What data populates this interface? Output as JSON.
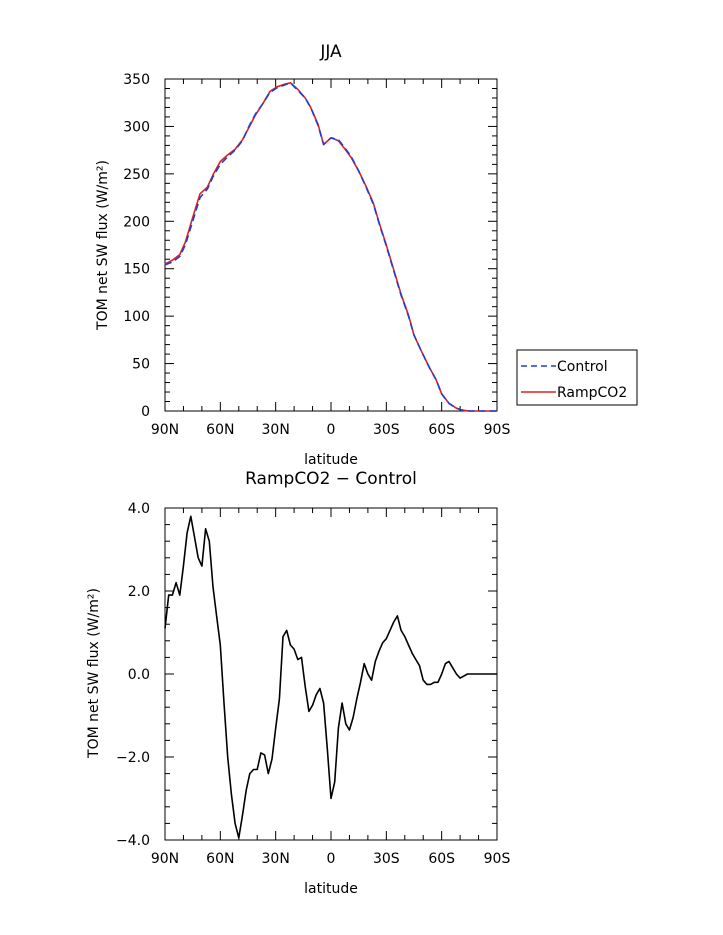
{
  "chart_data": [
    {
      "type": "line",
      "title": "JJA",
      "xlabel": "latitude",
      "ylabel": "TOM net SW flux (W/m²)",
      "xlim": [
        90,
        -90
      ],
      "ylim": [
        0,
        350
      ],
      "xticks": [
        90,
        60,
        30,
        0,
        -30,
        -60,
        -90
      ],
      "xtick_labels": [
        "90N",
        "60N",
        "30N",
        "0",
        "30S",
        "60S",
        "90S"
      ],
      "yticks": [
        0,
        50,
        100,
        150,
        200,
        250,
        300,
        350
      ],
      "ytick_labels": [
        "0",
        "50",
        "100",
        "150",
        "200",
        "250",
        "300",
        "350"
      ],
      "legend_position": "right",
      "x": [
        90,
        86,
        82,
        79,
        75,
        71,
        67,
        64,
        60,
        56,
        52,
        48,
        45,
        41,
        37,
        33,
        29,
        26,
        22,
        18,
        14,
        11,
        7,
        4,
        0,
        -4,
        -8,
        -11,
        -15,
        -19,
        -23,
        -26,
        -30,
        -34,
        -38,
        -42,
        -45,
        -49,
        -53,
        -57,
        -60,
        -64,
        -68,
        -71,
        -75,
        -79,
        -83,
        -86,
        -90
      ],
      "series": [
        {
          "name": "Control",
          "color": "#1f3fcf",
          "dash": "dashed",
          "values": [
            154,
            157,
            163,
            175,
            200,
            225,
            234,
            247,
            260,
            268,
            275,
            285,
            298,
            313,
            324,
            336,
            341,
            343,
            346,
            338,
            330,
            320,
            301,
            281,
            288,
            286,
            276,
            268,
            253,
            236,
            218,
            198,
            174,
            148,
            122,
            100,
            80,
            63,
            47,
            33,
            18,
            8,
            3,
            1,
            0,
            0,
            0,
            0,
            0
          ]
        },
        {
          "name": "RampCO2",
          "color": "#e02020",
          "dash": "solid",
          "values": [
            155,
            159,
            165,
            178,
            204,
            229,
            236,
            249,
            263,
            270,
            276,
            286,
            297,
            312,
            324,
            337,
            342,
            344,
            346,
            339,
            330,
            320,
            302,
            281,
            288,
            285,
            275,
            267,
            253,
            237,
            219,
            199,
            175,
            149,
            123,
            101,
            80,
            63,
            47,
            33,
            18,
            8,
            3,
            1,
            0,
            0,
            0,
            0,
            0
          ]
        }
      ]
    },
    {
      "type": "line",
      "title": "RampCO2 − Control",
      "xlabel": "latitude",
      "ylabel": "TOM net SW flux (W/m²)",
      "xlim": [
        90,
        -90
      ],
      "ylim": [
        -4,
        4
      ],
      "xticks": [
        90,
        60,
        30,
        0,
        -30,
        -60,
        -90
      ],
      "xtick_labels": [
        "90N",
        "60N",
        "30N",
        "0",
        "30S",
        "60S",
        "90S"
      ],
      "yticks": [
        -4,
        -2,
        0,
        2,
        4
      ],
      "ytick_labels": [
        "−4.0",
        "−2.0",
        "0.0",
        "2.0",
        "4.0"
      ],
      "x": [
        90,
        88,
        86,
        84,
        82,
        80,
        78,
        76,
        74,
        72,
        70,
        68,
        66,
        64,
        62,
        60,
        58,
        56,
        54,
        52,
        50,
        48,
        46,
        44,
        42,
        40,
        38,
        36,
        34,
        32,
        30,
        28,
        26,
        24,
        22,
        20,
        18,
        16,
        14,
        12,
        10,
        8,
        6,
        4,
        2,
        0,
        -2,
        -4,
        -6,
        -8,
        -10,
        -12,
        -14,
        -16,
        -18,
        -20,
        -22,
        -24,
        -26,
        -28,
        -30,
        -32,
        -34,
        -36,
        -38,
        -40,
        -42,
        -44,
        -46,
        -48,
        -50,
        -52,
        -54,
        -56,
        -58,
        -60,
        -62,
        -64,
        -66,
        -68,
        -70,
        -72,
        -74,
        -76,
        -78,
        -80,
        -82,
        -84,
        -86,
        -88,
        -90
      ],
      "series": [
        {
          "name": "",
          "color": "#000000",
          "dash": "solid",
          "values": [
            1.1,
            1.9,
            1.9,
            2.2,
            1.9,
            2.6,
            3.4,
            3.8,
            3.3,
            2.8,
            2.6,
            3.5,
            3.2,
            2.1,
            1.4,
            0.7,
            -0.7,
            -2.0,
            -2.9,
            -3.6,
            -3.95,
            -3.4,
            -2.8,
            -2.4,
            -2.3,
            -2.3,
            -1.9,
            -1.95,
            -2.4,
            -2.05,
            -1.3,
            -0.6,
            0.9,
            1.05,
            0.7,
            0.6,
            0.35,
            0.4,
            -0.3,
            -0.9,
            -0.75,
            -0.5,
            -0.35,
            -0.7,
            -1.8,
            -3.0,
            -2.6,
            -1.3,
            -0.7,
            -1.2,
            -1.35,
            -1.05,
            -0.6,
            -0.2,
            0.25,
            0.0,
            -0.15,
            0.3,
            0.55,
            0.75,
            0.85,
            1.05,
            1.25,
            1.4,
            1.05,
            0.9,
            0.7,
            0.5,
            0.35,
            0.2,
            -0.15,
            -0.25,
            -0.25,
            -0.2,
            -0.2,
            0.0,
            0.25,
            0.3,
            0.15,
            0.0,
            -0.1,
            -0.05,
            0.0,
            0.0,
            0.0,
            0.0,
            0.0,
            0.0,
            0.0,
            0.0,
            0.0
          ]
        }
      ]
    }
  ]
}
